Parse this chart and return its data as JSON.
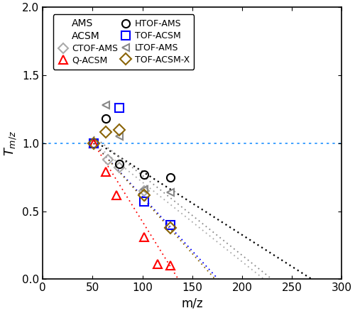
{
  "xlabel": "m/z",
  "ylabel": "$T_{m/z}$",
  "xlim": [
    0,
    300
  ],
  "ylim": [
    0.0,
    2.0
  ],
  "hline_y": 1.0,
  "hline_color": "#1E90FF",
  "series": {
    "CTOF-AMS": {
      "marker": "D",
      "color": "#aaaaaa",
      "markersize": 7,
      "x_data": [
        51,
        65,
        77,
        102
      ],
      "y_data": [
        1.0,
        0.88,
        0.82,
        0.65
      ],
      "fit_x": [
        51,
        222
      ],
      "fit_y": [
        1.0,
        0.0
      ]
    },
    "HTOF-AMS": {
      "marker": "o",
      "color": "#000000",
      "markersize": 8,
      "x_data": [
        63,
        77,
        102,
        128
      ],
      "y_data": [
        1.18,
        0.85,
        0.77,
        0.75
      ],
      "fit_x": [
        51,
        270
      ],
      "fit_y": [
        1.02,
        0.0
      ]
    },
    "LTOF-AMS": {
      "marker": "<",
      "color": "#888888",
      "markersize": 7,
      "x_data": [
        63,
        77,
        102,
        128
      ],
      "y_data": [
        1.28,
        1.05,
        0.66,
        0.64
      ],
      "fit_x": [
        51,
        230
      ],
      "fit_y": [
        1.05,
        0.0
      ]
    },
    "Q-ACSM": {
      "marker": "^",
      "color": "#FF0000",
      "markersize": 9,
      "x_data": [
        51,
        63,
        74,
        102,
        115,
        128
      ],
      "y_data": [
        1.0,
        0.79,
        0.62,
        0.31,
        0.11,
        0.1
      ],
      "fit_x": [
        51,
        136
      ],
      "fit_y": [
        1.0,
        0.0
      ]
    },
    "TOF-ACSM": {
      "marker": "s",
      "color": "#0000FF",
      "markersize": 8,
      "x_data": [
        51,
        77,
        102,
        128
      ],
      "y_data": [
        1.0,
        1.26,
        0.57,
        0.4
      ],
      "fit_x": [
        51,
        176
      ],
      "fit_y": [
        1.0,
        0.0
      ]
    },
    "TOF-ACSM-X": {
      "marker": "D",
      "color": "#8B6508",
      "markersize": 8,
      "x_data": [
        51,
        63,
        77,
        102,
        128
      ],
      "y_data": [
        1.0,
        1.08,
        1.1,
        0.62,
        0.38
      ],
      "fit_x": [
        51,
        173
      ],
      "fit_y": [
        1.0,
        0.0
      ]
    }
  },
  "legend": {
    "col1_header": "AMS",
    "col1_items": [
      "CTOF-AMS",
      "HTOF-AMS",
      "LTOF-AMS"
    ],
    "col2_header": "ACSM",
    "col2_items": [
      "Q-ACSM",
      "TOF-ACSM",
      "TOF-ACSM-X"
    ]
  }
}
